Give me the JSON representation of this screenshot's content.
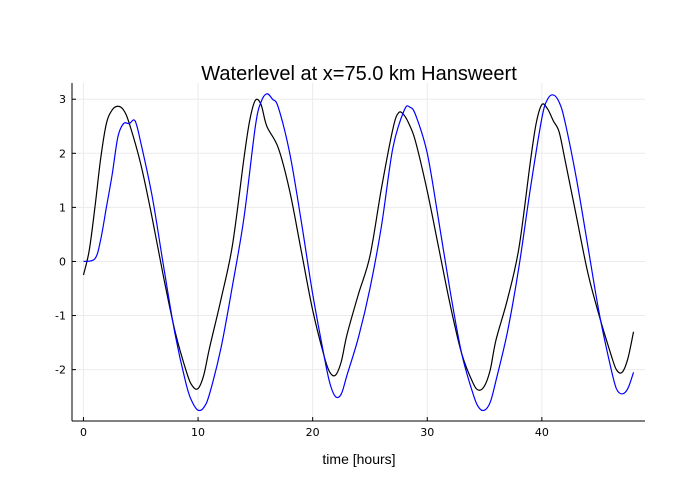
{
  "chart_data": {
    "type": "line",
    "title": "Waterlevel at x=75.0 km Hansweert",
    "xlabel": "time [hours]",
    "ylabel": "",
    "xlim": [
      -1,
      49
    ],
    "ylim": [
      -2.95,
      3.3
    ],
    "xticks": [
      0,
      10,
      20,
      30,
      40
    ],
    "xtick_labels": [
      "0",
      "10",
      "20",
      "30",
      "40"
    ],
    "yticks": [
      -2,
      -1,
      0,
      1,
      2,
      3
    ],
    "ytick_labels": [
      "-2",
      "-1",
      "0",
      "1",
      "2",
      "3"
    ],
    "grid": true,
    "legend": "none",
    "series": [
      {
        "color": "#000000",
        "x": [
          0,
          0.5,
          1,
          1.5,
          2,
          2.5,
          3,
          3.5,
          4,
          5,
          6,
          7,
          8,
          9,
          9.5,
          10,
          10.5,
          11,
          12,
          13,
          14,
          14.5,
          15,
          15.5,
          16,
          17,
          18,
          19,
          20,
          21,
          21.5,
          22,
          22.5,
          23,
          24,
          25,
          26,
          27,
          27.5,
          28,
          28.5,
          29,
          30,
          31,
          32,
          33,
          34,
          34.5,
          35,
          35.5,
          36,
          37,
          38,
          39,
          39.5,
          40,
          40.5,
          41,
          41.5,
          42,
          43,
          44,
          45,
          46,
          46.5,
          47,
          47.5,
          48
        ],
        "y": [
          -0.25,
          0.2,
          1.0,
          1.9,
          2.55,
          2.8,
          2.87,
          2.8,
          2.55,
          1.8,
          0.8,
          -0.3,
          -1.3,
          -2.05,
          -2.3,
          -2.35,
          -2.1,
          -1.6,
          -0.7,
          0.3,
          1.9,
          2.6,
          2.98,
          2.9,
          2.5,
          2.1,
          1.3,
          0.2,
          -0.9,
          -1.75,
          -2.05,
          -2.1,
          -1.85,
          -1.35,
          -0.6,
          0.1,
          1.35,
          2.45,
          2.75,
          2.7,
          2.5,
          2.2,
          1.3,
          0.25,
          -0.8,
          -1.7,
          -2.25,
          -2.38,
          -2.3,
          -2.0,
          -1.45,
          -0.7,
          0.25,
          1.85,
          2.55,
          2.9,
          2.82,
          2.6,
          2.4,
          1.9,
          0.85,
          -0.2,
          -1.0,
          -1.7,
          -2.0,
          -2.05,
          -1.8,
          -1.3
        ]
      },
      {
        "color": "#0000ff",
        "x": [
          0,
          1,
          1.5,
          2,
          2.5,
          3,
          3.5,
          4,
          4.5,
          5,
          6,
          7,
          8,
          9,
          9.5,
          10,
          10.5,
          11,
          12,
          13,
          14,
          15,
          15.5,
          16,
          16.5,
          17,
          18,
          19,
          20,
          21,
          21.5,
          22,
          22.5,
          23,
          24,
          25,
          26,
          27,
          28,
          28.5,
          29,
          30,
          31,
          32,
          33,
          34,
          34.5,
          35,
          35.5,
          36,
          37,
          38,
          39,
          40,
          40.5,
          41,
          41.5,
          42,
          43,
          44,
          45,
          46,
          46.5,
          47,
          47.5,
          48
        ],
        "y": [
          0,
          0.05,
          0.4,
          1.0,
          1.6,
          2.3,
          2.55,
          2.55,
          2.6,
          2.2,
          1.2,
          -0.1,
          -1.35,
          -2.3,
          -2.6,
          -2.75,
          -2.7,
          -2.45,
          -1.6,
          -0.45,
          0.8,
          2.5,
          2.95,
          3.1,
          3.0,
          2.85,
          2.0,
          0.75,
          -0.6,
          -1.75,
          -2.25,
          -2.5,
          -2.45,
          -2.1,
          -1.4,
          -0.5,
          0.65,
          2.1,
          2.8,
          2.85,
          2.7,
          2.0,
          0.75,
          -0.55,
          -1.7,
          -2.45,
          -2.7,
          -2.75,
          -2.6,
          -2.2,
          -1.3,
          -0.1,
          1.35,
          2.65,
          3.0,
          3.08,
          2.95,
          2.6,
          1.55,
          0.3,
          -0.95,
          -1.95,
          -2.35,
          -2.45,
          -2.35,
          -2.05
        ]
      }
    ]
  }
}
